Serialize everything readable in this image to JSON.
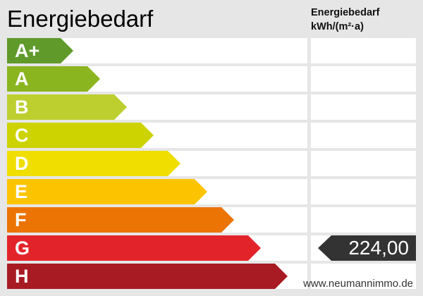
{
  "title": "Energiebedarf",
  "column_header": {
    "line1": "Energiebedarf",
    "line2": "kWh/(m²·a)"
  },
  "classes": [
    {
      "label": "A+",
      "color": "#5f9a2a"
    },
    {
      "label": "A",
      "color": "#8ab51f"
    },
    {
      "label": "B",
      "color": "#bccf2f"
    },
    {
      "label": "C",
      "color": "#cdd300"
    },
    {
      "label": "D",
      "color": "#f0de00"
    },
    {
      "label": "E",
      "color": "#fcc400"
    },
    {
      "label": "F",
      "color": "#ec7404"
    },
    {
      "label": "G",
      "color": "#e3232a"
    },
    {
      "label": "H",
      "color": "#a81b22"
    }
  ],
  "value": {
    "text": "224,00",
    "class": "G",
    "color": "#333333"
  },
  "watermark": "www.neumannimmo.de"
}
